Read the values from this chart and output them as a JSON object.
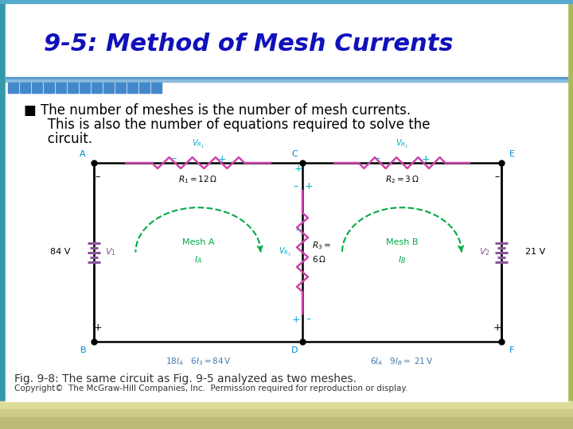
{
  "title": "9-5: Method of Mesh Currents",
  "title_color": "#1111BB",
  "title_fontsize": 22,
  "bg_color": "#FFFFFF",
  "bullet_line1": "■ The number of meshes is the number of mesh currents.",
  "bullet_line2": "   This is also the number of equations required to solve the",
  "bullet_line3": "   circuit.",
  "bullet_fontsize": 12,
  "bullet_color": "#000000",
  "fig_caption": "Fig. 9-8: The same circuit as Fig. 9-5 analyzed as two meshes.",
  "fig_caption_fontsize": 10,
  "copyright": "Copyright©  The McGraw-Hill Companies, Inc.  Permission required for reproduction or display.",
  "copyright_fontsize": 7.5,
  "footer_color": "#333333",
  "left_border_color": "#3399AA",
  "right_border_color": "#AABB55",
  "bottom_gradient_color": "#CCCC88",
  "header_line_color": "#5599CC",
  "square_color": "#4488CC",
  "wire_color": "#000000",
  "res_color": "#CC44AA",
  "bat_color": "#885599",
  "mesh_color": "#00AA44",
  "label_cyan": "#00AACC",
  "label_blue": "#4477AA",
  "node_label_color": "#0088CC",
  "eq_color": "#4477AA"
}
